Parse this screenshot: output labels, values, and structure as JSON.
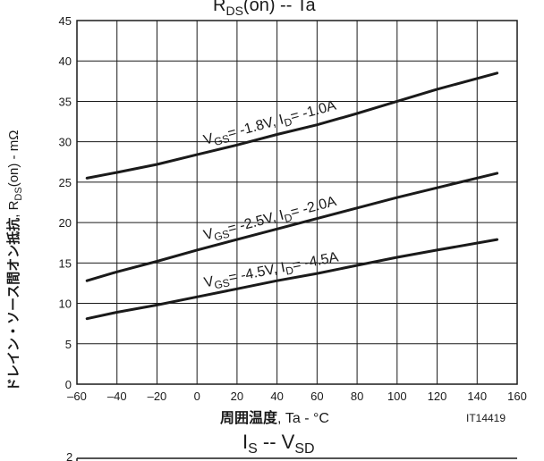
{
  "chart_data": {
    "type": "line",
    "title": "RDS(on) -- Ta",
    "title_main": "R",
    "title_sub": "DS",
    "title_rest": "(on)  --  Ta",
    "xlabel_bold": "周囲温度",
    "xlabel_rest": ", Ta - °C",
    "ylabel_bold": "ドレイン・ソース間オン抵抗",
    "ylabel_rest_a": ", R",
    "ylabel_sub": "DS",
    "ylabel_rest_b": "(on) - mΩ",
    "xlim": [
      -60,
      160
    ],
    "ylim": [
      0,
      45
    ],
    "xticks": [
      -60,
      -40,
      -20,
      0,
      20,
      40,
      60,
      80,
      100,
      120,
      140,
      160
    ],
    "yticks": [
      0,
      5,
      10,
      15,
      20,
      25,
      30,
      35,
      40,
      45
    ],
    "x_tick_labels": [
      "–60",
      "–40",
      "–20",
      "0",
      "20",
      "40",
      "60",
      "80",
      "100",
      "120",
      "140",
      "160"
    ],
    "y_tick_labels": [
      "0",
      "5",
      "10",
      "15",
      "20",
      "25",
      "30",
      "35",
      "40",
      "45"
    ],
    "grid": true,
    "series": [
      {
        "x": [
          -55,
          -40,
          -20,
          0,
          20,
          40,
          60,
          80,
          100,
          120,
          150
        ],
        "y": [
          25.5,
          26.2,
          27.2,
          28.4,
          29.6,
          30.9,
          32.1,
          33.5,
          35.0,
          36.5,
          38.5
        ],
        "label_v": "V",
        "label_v_sub": "GS",
        "label_mid": "= -1.8V, I",
        "label_i_sub": "D",
        "label_end": "= -1.0A"
      },
      {
        "x": [
          -55,
          -40,
          -20,
          0,
          20,
          40,
          60,
          80,
          100,
          120,
          150
        ],
        "y": [
          12.8,
          13.9,
          15.2,
          16.6,
          17.9,
          19.2,
          20.5,
          21.8,
          23.1,
          24.3,
          26.1
        ],
        "label_v": "V",
        "label_v_sub": "GS",
        "label_mid": "= -2.5V, I",
        "label_i_sub": "D",
        "label_end": "= -2.0A"
      },
      {
        "x": [
          -55,
          -40,
          -20,
          0,
          20,
          40,
          60,
          80,
          100,
          120,
          150
        ],
        "y": [
          8.1,
          8.9,
          9.8,
          10.8,
          11.8,
          12.8,
          13.7,
          14.7,
          15.7,
          16.6,
          17.9
        ],
        "label_v": "V",
        "label_v_sub": "GS",
        "label_mid": "= -4.5V, I",
        "label_i_sub": "D",
        "label_end": "= -4.5A"
      }
    ],
    "figure_id": "IT14419"
  },
  "next_chart": {
    "title_main": "I",
    "title_sub": "S",
    "title_mid": "  --  V",
    "title_sub2": "SD",
    "first_tick": "2"
  }
}
